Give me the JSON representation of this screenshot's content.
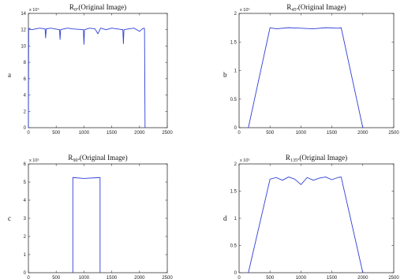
{
  "chart_data": [
    {
      "type": "line",
      "panel_letter": "a",
      "title_main": "R",
      "title_sub": "0°",
      "title_rest": "(Original Image)",
      "y_multiplier": "x 10⁴",
      "xlim": [
        0,
        2500
      ],
      "ylim": [
        0,
        14
      ],
      "x_ticks": [
        0,
        500,
        1000,
        1500,
        2000,
        2500
      ],
      "y_ticks": [
        0,
        2,
        4,
        6,
        8,
        10,
        12,
        14
      ],
      "series_color": "#2f3fd6",
      "x": [
        0,
        5,
        60,
        200,
        300,
        310,
        320,
        400,
        560,
        570,
        580,
        700,
        800,
        990,
        1000,
        1010,
        1100,
        1200,
        1250,
        1300,
        1400,
        1500,
        1600,
        1700,
        1710,
        1720,
        1800,
        1900,
        2000,
        2050,
        2085,
        2090,
        2100
      ],
      "y": [
        0,
        12.2,
        12.0,
        12.2,
        12.1,
        11.0,
        12.1,
        12.2,
        12.0,
        10.8,
        12.0,
        12.2,
        12.1,
        12.0,
        10.2,
        12.0,
        12.2,
        12.1,
        11.5,
        12.2,
        12.0,
        12.2,
        12.1,
        12.0,
        10.3,
        12.0,
        12.1,
        12.2,
        11.8,
        12.1,
        12.2,
        12.1,
        0
      ]
    },
    {
      "type": "line",
      "panel_letter": "b",
      "title_main": "R",
      "title_sub": "45°",
      "title_rest": "(Original Image)",
      "y_multiplier": "x 10⁵",
      "xlim": [
        0,
        2500
      ],
      "ylim": [
        0,
        2
      ],
      "x_ticks": [
        0,
        500,
        1000,
        1500,
        2000,
        2500
      ],
      "y_ticks": [
        0,
        0.5,
        1,
        1.5,
        2
      ],
      "series_color": "#2f3fd6",
      "x": [
        150,
        500,
        600,
        800,
        1000,
        1200,
        1400,
        1600,
        1650,
        2000
      ],
      "y": [
        0,
        1.75,
        1.73,
        1.75,
        1.74,
        1.73,
        1.75,
        1.74,
        1.75,
        0
      ]
    },
    {
      "type": "line",
      "panel_letter": "c",
      "title_main": "R",
      "title_sub": "90°",
      "title_rest": "(Original Image)",
      "y_multiplier": "x 10⁵",
      "xlim": [
        0,
        2500
      ],
      "ylim": [
        0,
        6
      ],
      "x_ticks": [
        0,
        500,
        1000,
        1500,
        2000,
        2500
      ],
      "y_ticks": [
        0,
        1,
        2,
        3,
        4,
        5,
        6
      ],
      "series_color": "#2f3fd6",
      "x": [
        800,
        800,
        1000,
        1290,
        1290
      ],
      "y": [
        0,
        5.25,
        5.2,
        5.25,
        0
      ]
    },
    {
      "type": "line",
      "panel_letter": "d",
      "title_main": "R",
      "title_sub": "135°",
      "title_rest": "(Original Image)",
      "y_multiplier": "x 10⁵",
      "xlim": [
        0,
        2500
      ],
      "ylim": [
        0,
        2
      ],
      "x_ticks": [
        0,
        500,
        1000,
        1500,
        2000,
        2500
      ],
      "y_ticks": [
        0,
        0.5,
        1,
        1.5,
        2
      ],
      "series_color": "#2f3fd6",
      "x": [
        150,
        500,
        600,
        700,
        800,
        900,
        1000,
        1100,
        1200,
        1300,
        1400,
        1500,
        1600,
        1650,
        2000
      ],
      "y": [
        0,
        1.72,
        1.75,
        1.7,
        1.76,
        1.72,
        1.62,
        1.75,
        1.7,
        1.74,
        1.76,
        1.71,
        1.75,
        1.76,
        0
      ]
    }
  ]
}
